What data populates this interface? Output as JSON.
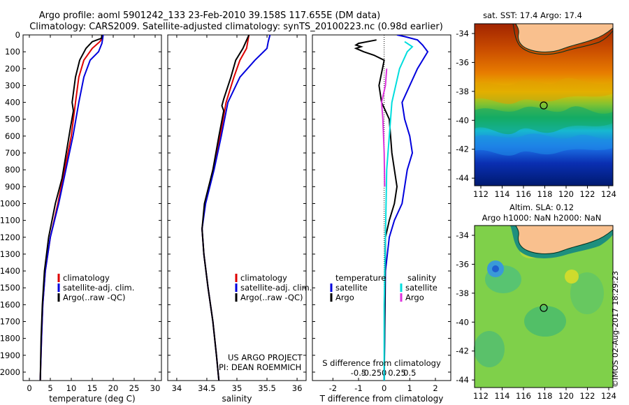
{
  "header": {
    "line1": "Argo profile: aoml 5901242_133 23-Feb-2010 39.158S 117.655E (DM data)",
    "line2": "Climatology: CARS2009. Satellite-adjusted climatology: synTS_20100223.nc (0.98d earlier)"
  },
  "timestamp": "©IMOS 02-Aug-2017 18:29:23",
  "project_note": [
    "US ARGO PROJECT",
    "PI: DEAN ROEMMICH"
  ],
  "colors": {
    "climatology": "#dd0000",
    "satellite": "#0000dd",
    "argo": "#000000",
    "salinity_satellite": "#00dddd",
    "salinity_argo": "#dd33dd"
  },
  "chart_data": [
    {
      "type": "line",
      "xlabel": "temperature (deg C)",
      "xlim": [
        -1.5,
        31.5
      ],
      "xticks": [
        0,
        5,
        10,
        15,
        20,
        25,
        30
      ],
      "ylim": [
        2050,
        0
      ],
      "yticks": [
        0,
        100,
        200,
        300,
        400,
        500,
        600,
        700,
        800,
        900,
        1000,
        1100,
        1200,
        1300,
        1400,
        1500,
        1600,
        1700,
        1800,
        1900,
        2000
      ],
      "legend": [
        "climatology",
        "satellite-adj. clim.",
        "Argo(..raw -QC)"
      ],
      "series": [
        {
          "name": "climatology",
          "color": "#dd0000",
          "points": [
            [
              17.6,
              0
            ],
            [
              17.4,
              20
            ],
            [
              16.8,
              40
            ],
            [
              15.0,
              80
            ],
            [
              13.0,
              150
            ],
            [
              11.8,
              250
            ],
            [
              11.0,
              400
            ],
            [
              10.0,
              600
            ],
            [
              8.4,
              800
            ],
            [
              6.8,
              1000
            ],
            [
              5.0,
              1200
            ],
            [
              3.8,
              1400
            ],
            [
              3.2,
              1600
            ],
            [
              2.9,
              1800
            ],
            [
              2.6,
              2050
            ]
          ]
        },
        {
          "name": "satellite-adj. clim.",
          "color": "#0000dd",
          "points": [
            [
              17.6,
              0
            ],
            [
              17.5,
              20
            ],
            [
              17.3,
              50
            ],
            [
              16.5,
              100
            ],
            [
              14.5,
              150
            ],
            [
              13.0,
              250
            ],
            [
              11.8,
              400
            ],
            [
              10.4,
              600
            ],
            [
              8.7,
              800
            ],
            [
              7.0,
              1000
            ],
            [
              5.0,
              1200
            ],
            [
              3.8,
              1400
            ],
            [
              3.2,
              1600
            ],
            [
              2.9,
              1800
            ],
            [
              2.6,
              2050
            ]
          ]
        },
        {
          "name": "Argo(..raw -QC)",
          "color": "#000000",
          "points": [
            [
              17.3,
              0
            ],
            [
              17.2,
              20
            ],
            [
              15.0,
              40
            ],
            [
              13.5,
              80
            ],
            [
              12.0,
              150
            ],
            [
              11.0,
              250
            ],
            [
              10.2,
              400
            ],
            [
              10.5,
              450
            ],
            [
              9.8,
              550
            ],
            [
              8.8,
              700
            ],
            [
              7.8,
              850
            ],
            [
              6.2,
              1000
            ],
            [
              4.6,
              1200
            ],
            [
              3.6,
              1400
            ],
            [
              3.1,
              1600
            ],
            [
              2.8,
              1800
            ],
            [
              2.6,
              2050
            ]
          ]
        }
      ]
    },
    {
      "type": "line",
      "xlabel": "salinity",
      "xlim": [
        33.85,
        36.15
      ],
      "xticks": [
        34,
        34.5,
        35,
        35.5,
        36
      ],
      "xticklabels": [
        "34",
        "34.5",
        "35",
        "35.5",
        "36"
      ],
      "ylim": [
        2050,
        0
      ],
      "legend": [
        "climatology",
        "satellite-adj. clim.",
        "Argo(..raw -QC)"
      ],
      "series": [
        {
          "name": "climatology",
          "color": "#dd0000",
          "points": [
            [
              35.2,
              0
            ],
            [
              35.18,
              40
            ],
            [
              35.16,
              80
            ],
            [
              35.05,
              150
            ],
            [
              34.95,
              250
            ],
            [
              34.82,
              400
            ],
            [
              34.72,
              600
            ],
            [
              34.6,
              800
            ],
            [
              34.47,
              1000
            ],
            [
              34.42,
              1150
            ],
            [
              34.45,
              1300
            ],
            [
              34.52,
              1500
            ],
            [
              34.6,
              1700
            ],
            [
              34.66,
              1900
            ],
            [
              34.7,
              2050
            ]
          ]
        },
        {
          "name": "satellite-adj. clim.",
          "color": "#0000dd",
          "points": [
            [
              35.55,
              0
            ],
            [
              35.52,
              40
            ],
            [
              35.5,
              80
            ],
            [
              35.3,
              150
            ],
            [
              35.05,
              250
            ],
            [
              34.85,
              400
            ],
            [
              34.74,
              600
            ],
            [
              34.62,
              800
            ],
            [
              34.48,
              1000
            ],
            [
              34.42,
              1150
            ],
            [
              34.45,
              1300
            ],
            [
              34.52,
              1500
            ],
            [
              34.6,
              1700
            ],
            [
              34.66,
              1900
            ],
            [
              34.7,
              2050
            ]
          ]
        },
        {
          "name": "Argo(..raw -QC)",
          "color": "#000000",
          "points": [
            [
              35.2,
              0
            ],
            [
              35.15,
              40
            ],
            [
              35.1,
              80
            ],
            [
              34.98,
              150
            ],
            [
              34.9,
              250
            ],
            [
              34.78,
              380
            ],
            [
              34.75,
              420
            ],
            [
              34.78,
              450
            ],
            [
              34.7,
              600
            ],
            [
              34.6,
              800
            ],
            [
              34.46,
              1000
            ],
            [
              34.42,
              1150
            ],
            [
              34.45,
              1300
            ],
            [
              34.52,
              1500
            ],
            [
              34.6,
              1700
            ],
            [
              34.66,
              1900
            ],
            [
              34.7,
              2050
            ]
          ]
        }
      ]
    },
    {
      "type": "line",
      "xlabel": "T difference from climatology",
      "xlim": [
        -2.8,
        2.6
      ],
      "xticks": [
        -2,
        -1,
        0,
        1,
        2
      ],
      "top_xlabel": "S difference from climatology",
      "top_xticks": [
        -0.5,
        -0.25,
        0,
        0.25,
        0.5
      ],
      "top_xticklabels": [
        "-0.5",
        "-0.25",
        "0",
        "0.25",
        "0.5"
      ],
      "ylim": [
        2050,
        0
      ],
      "legend_title_temperature": "temperature",
      "legend_title_salinity": "salinity",
      "legend": [
        "satellite",
        "Argo",
        "satellite",
        "Argo"
      ],
      "series": [
        {
          "name": "satellite",
          "color": "#0000dd",
          "points": [
            [
              0.5,
              0
            ],
            [
              0.8,
              10
            ],
            [
              1.3,
              30
            ],
            [
              1.5,
              60
            ],
            [
              1.7,
              100
            ],
            [
              1.3,
              200
            ],
            [
              0.7,
              400
            ],
            [
              0.8,
              500
            ],
            [
              1.0,
              600
            ],
            [
              1.1,
              700
            ],
            [
              0.9,
              800
            ],
            [
              0.8,
              900
            ],
            [
              0.7,
              1000
            ],
            [
              0.4,
              1100
            ],
            [
              0.2,
              1200
            ],
            [
              0.05,
              1400
            ],
            [
              0,
              2050
            ]
          ]
        },
        {
          "name": "Argo",
          "color": "#000000",
          "points": [
            [
              -0.3,
              30
            ],
            [
              -1.0,
              50
            ],
            [
              -1.1,
              60
            ],
            [
              -0.9,
              70
            ],
            [
              -1.1,
              80
            ],
            [
              -0.8,
              100
            ],
            [
              -0.4,
              120
            ],
            [
              0,
              150
            ],
            [
              -0.2,
              300
            ],
            [
              -0.1,
              400
            ],
            [
              0.2,
              500
            ],
            [
              0.3,
              700
            ],
            [
              0.5,
              900
            ],
            [
              0.4,
              1000
            ],
            [
              0.2,
              1100
            ],
            [
              0.05,
              1200
            ],
            [
              0,
              2050
            ]
          ]
        },
        {
          "name": "satellite",
          "color": "#00dddd",
          "points": [
            [
              0.8,
              40
            ],
            [
              1.1,
              70
            ],
            [
              0.9,
              100
            ],
            [
              0.6,
              200
            ],
            [
              0.3,
              400
            ],
            [
              0.1,
              800
            ],
            [
              0.05,
              1200
            ],
            [
              0,
              1600
            ],
            [
              0,
              2050
            ]
          ]
        },
        {
          "name": "Argo",
          "color": "#dd33dd",
          "points": [
            [
              0.1,
              200
            ],
            [
              0.05,
              300
            ],
            [
              -0.1,
              400
            ],
            [
              -0.05,
              500
            ],
            [
              0,
              700
            ],
            [
              0.02,
              900
            ]
          ]
        }
      ]
    }
  ],
  "maps": [
    {
      "title": "sat. SST: 17.4 Argo: 17.4",
      "xticks": [
        "112",
        "114",
        "116",
        "118",
        "120",
        "122",
        "124"
      ],
      "yticks": [
        "-34",
        "-36",
        "-38",
        "-40",
        "-42",
        "-44"
      ]
    },
    {
      "title_line1": "Altim. SLA: 0.12",
      "title_line2": "Argo h1000: NaN h2000: NaN",
      "xticks": [
        "112",
        "114",
        "116",
        "118",
        "120",
        "122",
        "124"
      ],
      "yticks": [
        "-34",
        "-36",
        "-38",
        "-40",
        "-42",
        "-44"
      ]
    }
  ]
}
